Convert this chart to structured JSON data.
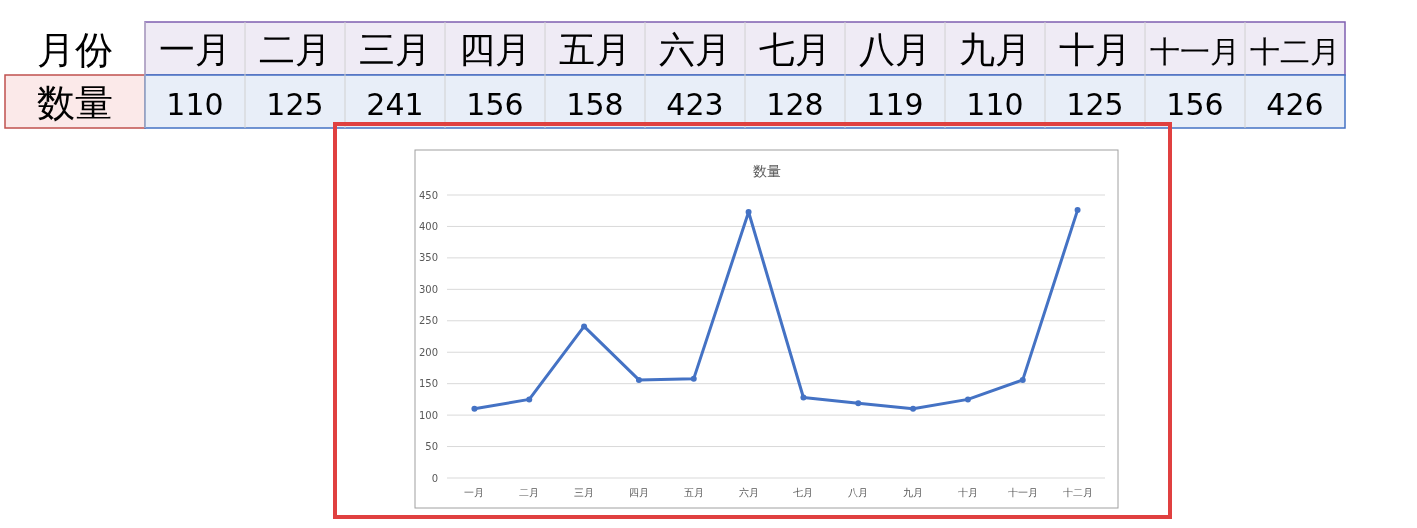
{
  "chart_data": [
    {
      "type": "other",
      "annotations": [
        "月份",
        "一月",
        "二月",
        "三月",
        "四月",
        "五月",
        "六月",
        "七月",
        "八月",
        "九月",
        "十月",
        "十一月",
        "十二月",
        "数量",
        "110",
        "125",
        "241",
        "156",
        "158",
        "423",
        "128",
        "119",
        "110",
        "125",
        "156",
        "426"
      ]
    },
    {
      "type": "line",
      "title": "数量",
      "categories": [
        "一月",
        "二月",
        "三月",
        "四月",
        "五月",
        "六月",
        "七月",
        "八月",
        "九月",
        "十月",
        "十一月",
        "十二月"
      ],
      "series": [
        {
          "color": "#4472c4",
          "values": [
            110,
            125,
            241,
            156,
            158,
            423,
            128,
            119,
            110,
            125,
            156,
            426
          ]
        }
      ],
      "ylim": [
        0,
        450
      ],
      "yticks": [
        0,
        50,
        100,
        150,
        200,
        250,
        300,
        350,
        400,
        450
      ],
      "grid": "y",
      "marker": "circle",
      "line_style": "solid"
    }
  ]
}
